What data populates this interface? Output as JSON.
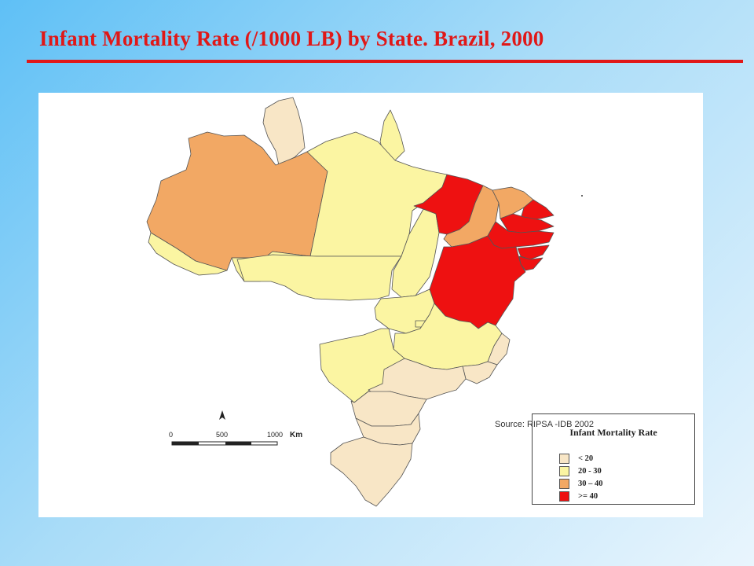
{
  "title": "Infant Mortality Rate (/1000 LB) by State. Brazil, 2000",
  "legend": {
    "title": "Infant Mortality Rate",
    "classes": [
      {
        "label": "< 20",
        "color": "#f8e6c6"
      },
      {
        "label": "20 - 30",
        "color": "#fbf5a2"
      },
      {
        "label": "30 – 40",
        "color": "#f2a864"
      },
      {
        "label": ">= 40",
        "color": "#ee1111"
      }
    ]
  },
  "source": "Source: RIPSA -IDB 2002",
  "scale_bar": {
    "ticks": [
      "0",
      "500",
      "1000"
    ],
    "unit": "Km"
  },
  "states": [
    {
      "name": "Roraima",
      "class": "< 20"
    },
    {
      "name": "Amapá",
      "class": "20 - 30"
    },
    {
      "name": "Amazonas",
      "class": "30 – 40"
    },
    {
      "name": "Pará",
      "class": "20 - 30"
    },
    {
      "name": "Acre",
      "class": "20 - 30"
    },
    {
      "name": "Rondônia",
      "class": "20 - 30"
    },
    {
      "name": "Mato Grosso",
      "class": "20 - 30"
    },
    {
      "name": "Tocantins",
      "class": "20 - 30"
    },
    {
      "name": "Maranhão",
      "class": ">= 40"
    },
    {
      "name": "Piauí",
      "class": "30 – 40"
    },
    {
      "name": "Ceará",
      "class": "30 – 40"
    },
    {
      "name": "Rio Grande do Norte",
      "class": ">= 40"
    },
    {
      "name": "Paraíba",
      "class": ">= 40"
    },
    {
      "name": "Pernambuco",
      "class": ">= 40"
    },
    {
      "name": "Alagoas",
      "class": ">= 40"
    },
    {
      "name": "Sergipe",
      "class": ">= 40"
    },
    {
      "name": "Bahia",
      "class": ">= 40"
    },
    {
      "name": "Goiás",
      "class": "20 - 30"
    },
    {
      "name": "Distrito Federal",
      "class": "20 - 30"
    },
    {
      "name": "Minas Gerais",
      "class": "20 - 30"
    },
    {
      "name": "Mato Grosso do Sul",
      "class": "20 - 30"
    },
    {
      "name": "Espírito Santo",
      "class": "< 20"
    },
    {
      "name": "Rio de Janeiro",
      "class": "< 20"
    },
    {
      "name": "São Paulo",
      "class": "< 20"
    },
    {
      "name": "Paraná",
      "class": "< 20"
    },
    {
      "name": "Santa Catarina",
      "class": "< 20"
    },
    {
      "name": "Rio Grande do Sul",
      "class": "< 20"
    }
  ]
}
